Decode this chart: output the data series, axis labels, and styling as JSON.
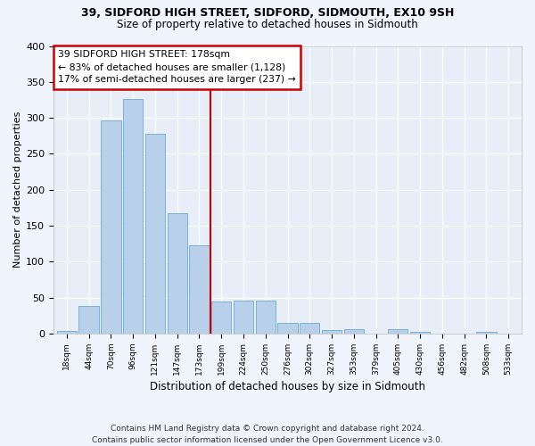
{
  "title1": "39, SIDFORD HIGH STREET, SIDFORD, SIDMOUTH, EX10 9SH",
  "title2": "Size of property relative to detached houses in Sidmouth",
  "xlabel": "Distribution of detached houses by size in Sidmouth",
  "ylabel": "Number of detached properties",
  "footnote": "Contains HM Land Registry data © Crown copyright and database right 2024.\nContains public sector information licensed under the Open Government Licence v3.0.",
  "bin_labels": [
    "18sqm",
    "44sqm",
    "70sqm",
    "96sqm",
    "121sqm",
    "147sqm",
    "173sqm",
    "199sqm",
    "224sqm",
    "250sqm",
    "276sqm",
    "302sqm",
    "327sqm",
    "353sqm",
    "379sqm",
    "405sqm",
    "430sqm",
    "456sqm",
    "482sqm",
    "508sqm",
    "533sqm"
  ],
  "bar_heights": [
    4,
    38,
    297,
    326,
    278,
    168,
    123,
    44,
    46,
    46,
    15,
    15,
    5,
    6,
    0,
    6,
    3,
    0,
    0,
    3,
    0
  ],
  "bar_color": "#b8d0ea",
  "bar_edge_color": "#6aaad4",
  "bg_color": "#e8eef8",
  "grid_color": "#ffffff",
  "vline_x_index": 6.5,
  "annotation_line1": "39 SIDFORD HIGH STREET: 178sqm",
  "annotation_line2": "← 83% of detached houses are smaller (1,128)",
  "annotation_line3": "17% of semi-detached houses are larger (237) →",
  "annotation_box_color": "#ffffff",
  "annotation_box_edge": "#cc0000",
  "vline_color": "#cc0000",
  "ylim": [
    0,
    400
  ],
  "yticks": [
    0,
    50,
    100,
    150,
    200,
    250,
    300,
    350,
    400
  ]
}
